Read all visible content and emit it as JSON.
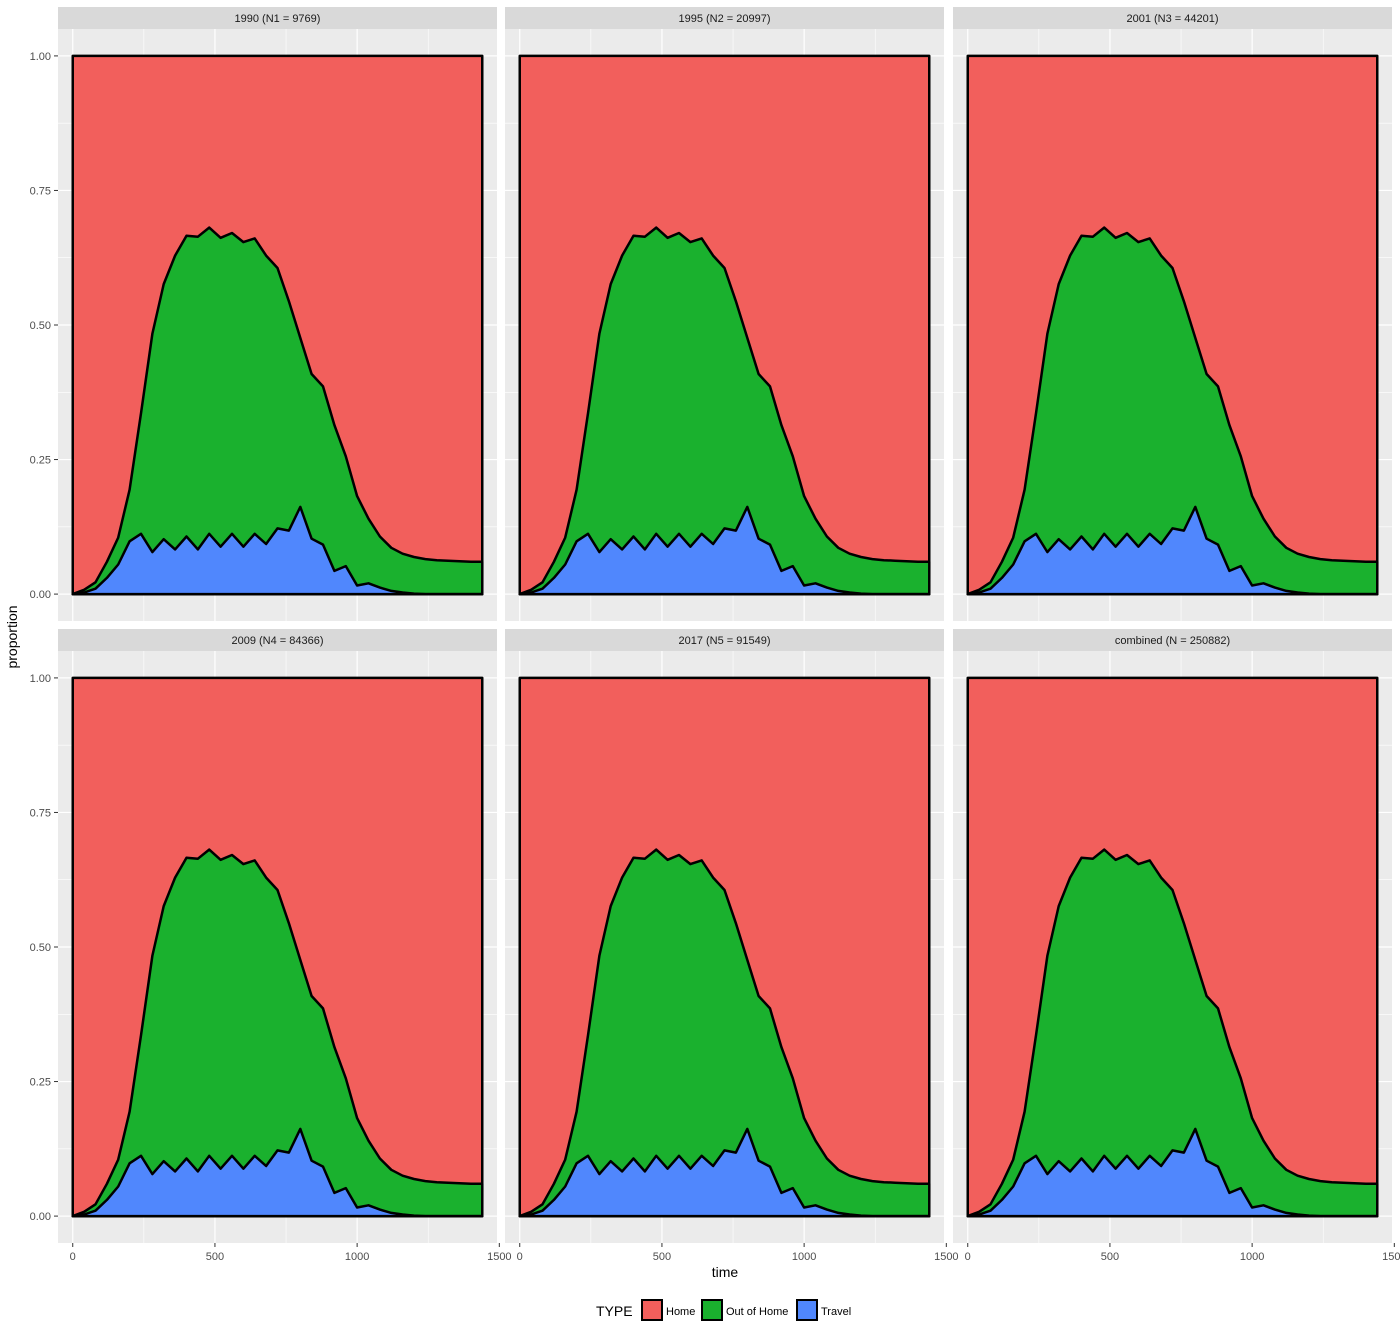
{
  "chart_data": {
    "type": "area",
    "subtype": "stacked-proportion-facet",
    "xlabel": "time",
    "ylabel": "proportion",
    "xlim": [
      0,
      1440
    ],
    "ylim": [
      0,
      1
    ],
    "x_ticks": [
      0,
      500,
      1000,
      1500
    ],
    "y_ticks": [
      0.0,
      0.25,
      0.5,
      0.75,
      1.0
    ],
    "y_tick_labels": [
      "0.00",
      "0.25",
      "0.50",
      "0.75",
      "1.00"
    ],
    "grid": true,
    "legend": {
      "title": "TYPE",
      "position": "bottom",
      "entries": [
        "Home",
        "Out of Home",
        "Travel"
      ]
    },
    "colors": {
      "Home": "#F25F5C",
      "Out of Home": "#1AB12E",
      "Travel": "#5087FD"
    },
    "panels": [
      {
        "label": "1990 (N1 = 9769)"
      },
      {
        "label": "1995 (N2 = 20997)"
      },
      {
        "label": "2001 (N3 = 44201)"
      },
      {
        "label": "2009 (N4 = 84366)"
      },
      {
        "label": "2017 (N5 = 91549)"
      },
      {
        "label": "combined (N = 250882)"
      }
    ],
    "x": [
      0,
      40,
      80,
      120,
      160,
      200,
      240,
      280,
      320,
      360,
      400,
      440,
      480,
      520,
      560,
      600,
      640,
      680,
      720,
      760,
      800,
      840,
      880,
      920,
      960,
      1000,
      1040,
      1080,
      1120,
      1160,
      1200,
      1240,
      1280,
      1320,
      1360,
      1400,
      1440
    ],
    "series": [
      {
        "name": "Travel",
        "values": [
          0.0,
          0.003,
          0.01,
          0.03,
          0.055,
          0.11,
          0.1,
          0.09,
          0.09,
          0.095,
          0.095,
          0.095,
          0.1,
          0.1,
          0.1,
          0.1,
          0.1,
          0.105,
          0.11,
          0.13,
          0.15,
          0.115,
          0.08,
          0.055,
          0.04,
          0.028,
          0.02,
          0.012,
          0.006,
          0.003,
          0.001,
          0.0,
          0.0,
          0.0,
          0.0,
          0.0,
          0.0
        ]
      },
      {
        "name": "Out of Home",
        "values": [
          0.0,
          0.005,
          0.012,
          0.03,
          0.05,
          0.09,
          0.23,
          0.4,
          0.48,
          0.54,
          0.565,
          0.575,
          0.575,
          0.568,
          0.565,
          0.56,
          0.555,
          0.53,
          0.49,
          0.42,
          0.32,
          0.3,
          0.3,
          0.265,
          0.21,
          0.16,
          0.12,
          0.095,
          0.08,
          0.072,
          0.068,
          0.065,
          0.063,
          0.062,
          0.061,
          0.06,
          0.06
        ]
      },
      {
        "name": "Home",
        "values": [
          1.0,
          0.992,
          0.978,
          0.94,
          0.895,
          0.8,
          0.67,
          0.51,
          0.43,
          0.365,
          0.34,
          0.33,
          0.325,
          0.332,
          0.335,
          0.34,
          0.345,
          0.365,
          0.4,
          0.45,
          0.53,
          0.585,
          0.62,
          0.68,
          0.75,
          0.812,
          0.86,
          0.893,
          0.914,
          0.925,
          0.931,
          0.935,
          0.937,
          0.938,
          0.939,
          0.94,
          0.94
        ]
      }
    ]
  }
}
